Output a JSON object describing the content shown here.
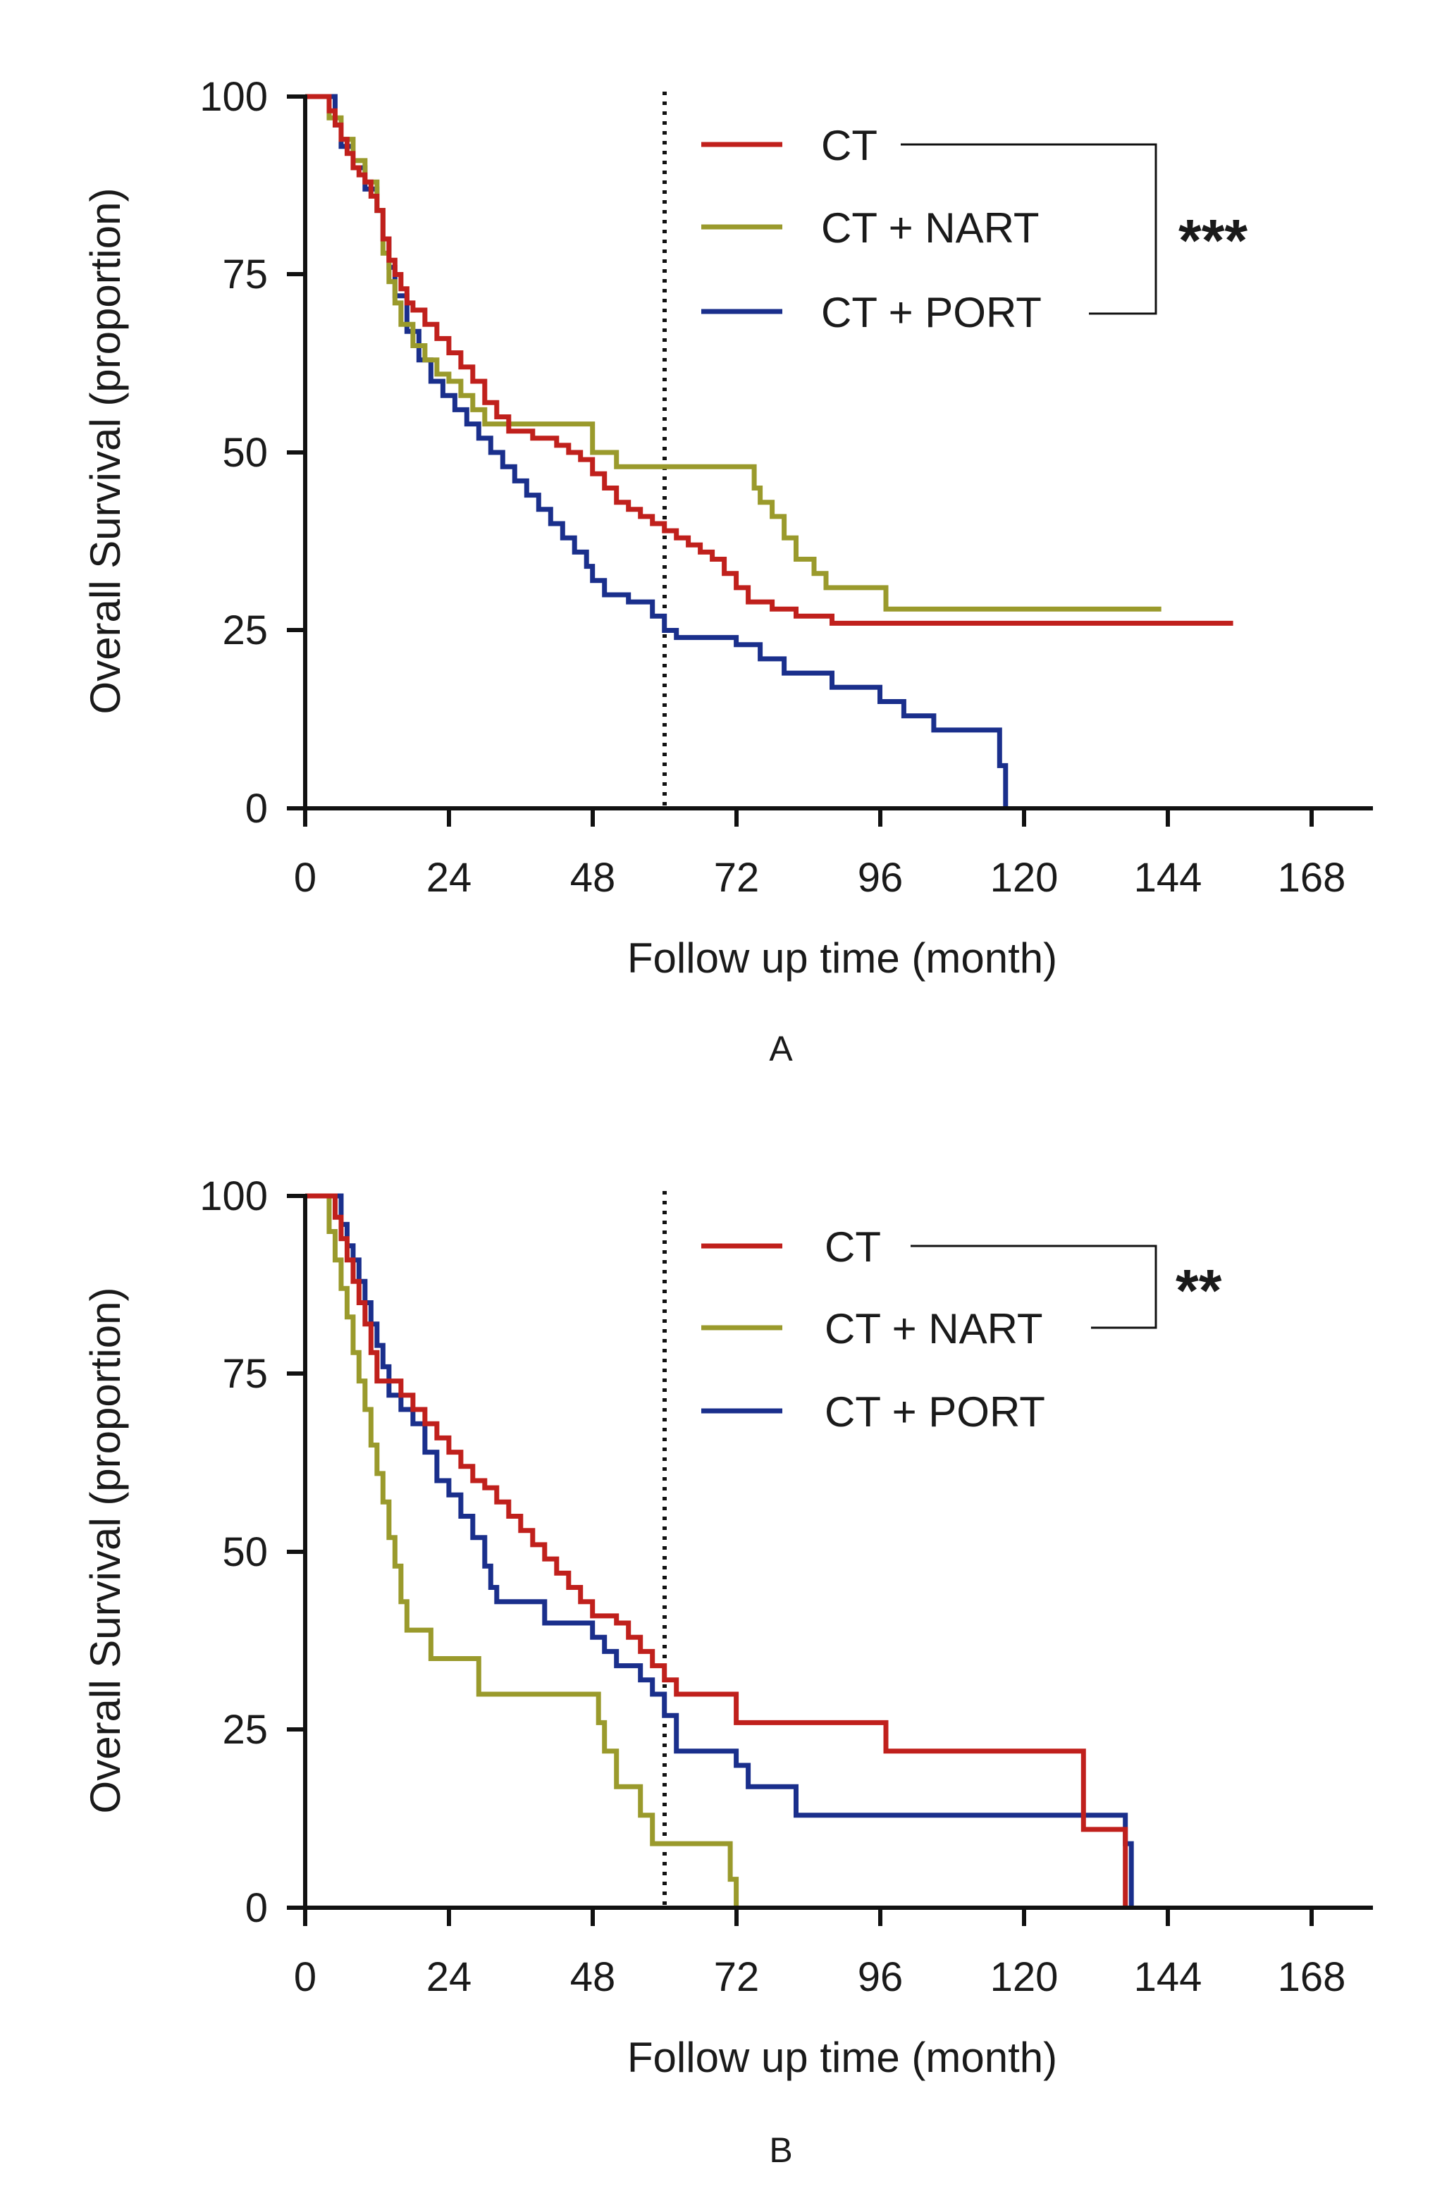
{
  "colors": {
    "CT": "#c0201c",
    "CT + NART": "#9a9a2c",
    "CT + PORT": "#1a2f8c"
  },
  "chart_data": [
    {
      "type": "line",
      "panel_label": "A",
      "ylabel": "Overall Survival (proportion)",
      "xlabel": "Follow up time (month)",
      "xlim": [
        0,
        178
      ],
      "ylim": [
        0,
        100
      ],
      "xticks": [
        0,
        24,
        48,
        72,
        96,
        120,
        144,
        168
      ],
      "yticks": [
        0,
        25,
        50,
        75,
        100
      ],
      "reference_line_x": 60,
      "legend": [
        "CT",
        "CT + NART",
        "CT + PORT"
      ],
      "significance": {
        "label": "***",
        "groups": [
          "CT",
          "CT + PORT"
        ]
      },
      "series": [
        {
          "name": "CT",
          "points": [
            [
              0,
              100
            ],
            [
              3,
              100
            ],
            [
              4,
              98
            ],
            [
              5,
              96
            ],
            [
              6,
              94
            ],
            [
              7,
              92
            ],
            [
              8,
              90
            ],
            [
              9,
              89
            ],
            [
              10,
              88
            ],
            [
              11,
              86
            ],
            [
              12,
              84
            ],
            [
              13,
              80
            ],
            [
              14,
              77
            ],
            [
              15,
              75
            ],
            [
              16,
              73
            ],
            [
              17,
              71
            ],
            [
              18,
              70
            ],
            [
              20,
              68
            ],
            [
              22,
              66
            ],
            [
              24,
              64
            ],
            [
              26,
              62
            ],
            [
              28,
              60
            ],
            [
              30,
              57
            ],
            [
              32,
              55
            ],
            [
              34,
              53
            ],
            [
              36,
              53
            ],
            [
              38,
              52
            ],
            [
              40,
              52
            ],
            [
              42,
              51
            ],
            [
              44,
              50
            ],
            [
              46,
              49
            ],
            [
              48,
              47
            ],
            [
              50,
              45
            ],
            [
              52,
              43
            ],
            [
              54,
              42
            ],
            [
              56,
              41
            ],
            [
              58,
              40
            ],
            [
              60,
              39
            ],
            [
              62,
              38
            ],
            [
              64,
              37
            ],
            [
              66,
              36
            ],
            [
              68,
              35
            ],
            [
              70,
              33
            ],
            [
              72,
              31
            ],
            [
              74,
              29
            ],
            [
              78,
              28
            ],
            [
              82,
              27
            ],
            [
              88,
              26
            ],
            [
              100,
              26
            ],
            [
              155,
              26
            ]
          ]
        },
        {
          "name": "CT + NART",
          "points": [
            [
              0,
              100
            ],
            [
              3,
              100
            ],
            [
              4,
              97
            ],
            [
              6,
              94
            ],
            [
              8,
              91
            ],
            [
              10,
              88
            ],
            [
              12,
              84
            ],
            [
              13,
              78
            ],
            [
              14,
              74
            ],
            [
              15,
              71
            ],
            [
              16,
              68
            ],
            [
              18,
              65
            ],
            [
              20,
              63
            ],
            [
              22,
              61
            ],
            [
              24,
              60
            ],
            [
              26,
              58
            ],
            [
              28,
              56
            ],
            [
              30,
              54
            ],
            [
              48,
              54
            ],
            [
              48,
              50
            ],
            [
              52,
              50
            ],
            [
              52,
              48
            ],
            [
              75,
              48
            ],
            [
              75,
              45
            ],
            [
              76,
              43
            ],
            [
              78,
              41
            ],
            [
              80,
              38
            ],
            [
              82,
              35
            ],
            [
              85,
              33
            ],
            [
              87,
              31
            ],
            [
              97,
              31
            ],
            [
              97,
              28
            ],
            [
              143,
              28
            ]
          ]
        },
        {
          "name": "CT + PORT",
          "points": [
            [
              0,
              100
            ],
            [
              4,
              100
            ],
            [
              5,
              96
            ],
            [
              6,
              93
            ],
            [
              8,
              90
            ],
            [
              10,
              87
            ],
            [
              12,
              84
            ],
            [
              13,
              80
            ],
            [
              14,
              76
            ],
            [
              15,
              72
            ],
            [
              17,
              67
            ],
            [
              19,
              63
            ],
            [
              21,
              60
            ],
            [
              23,
              58
            ],
            [
              25,
              56
            ],
            [
              27,
              54
            ],
            [
              29,
              52
            ],
            [
              31,
              50
            ],
            [
              33,
              48
            ],
            [
              35,
              46
            ],
            [
              37,
              44
            ],
            [
              39,
              42
            ],
            [
              41,
              40
            ],
            [
              43,
              38
            ],
            [
              45,
              36
            ],
            [
              47,
              34
            ],
            [
              48,
              32
            ],
            [
              50,
              30
            ],
            [
              54,
              29
            ],
            [
              58,
              27
            ],
            [
              60,
              25
            ],
            [
              62,
              24
            ],
            [
              72,
              24
            ],
            [
              72,
              23
            ],
            [
              76,
              21
            ],
            [
              80,
              19
            ],
            [
              88,
              17
            ],
            [
              96,
              15
            ],
            [
              100,
              13
            ],
            [
              105,
              11
            ],
            [
              110,
              11
            ],
            [
              116,
              11
            ],
            [
              116,
              6
            ],
            [
              117,
              0
            ]
          ]
        }
      ]
    },
    {
      "type": "line",
      "panel_label": "B",
      "ylabel": "Overall Survival (proportion)",
      "xlabel": "Follow up time (month)",
      "xlim": [
        0,
        178
      ],
      "ylim": [
        0,
        100
      ],
      "xticks": [
        0,
        24,
        48,
        72,
        96,
        120,
        144,
        168
      ],
      "yticks": [
        0,
        25,
        50,
        75,
        100
      ],
      "reference_line_x": 60,
      "legend": [
        "CT",
        "CT + NART",
        "CT + PORT"
      ],
      "significance": {
        "label": "**",
        "groups": [
          "CT",
          "CT + NART"
        ]
      },
      "series": [
        {
          "name": "CT",
          "points": [
            [
              0,
              100
            ],
            [
              4,
              100
            ],
            [
              5,
              97
            ],
            [
              6,
              94
            ],
            [
              7,
              91
            ],
            [
              8,
              88
            ],
            [
              9,
              85
            ],
            [
              10,
              82
            ],
            [
              11,
              78
            ],
            [
              12,
              74
            ],
            [
              15,
              74
            ],
            [
              16,
              72
            ],
            [
              18,
              70
            ],
            [
              20,
              68
            ],
            [
              22,
              66
            ],
            [
              24,
              64
            ],
            [
              26,
              62
            ],
            [
              28,
              60
            ],
            [
              30,
              59
            ],
            [
              32,
              57
            ],
            [
              34,
              55
            ],
            [
              36,
              53
            ],
            [
              38,
              51
            ],
            [
              40,
              49
            ],
            [
              42,
              47
            ],
            [
              44,
              45
            ],
            [
              46,
              43
            ],
            [
              48,
              41
            ],
            [
              52,
              40
            ],
            [
              54,
              38
            ],
            [
              56,
              36
            ],
            [
              58,
              34
            ],
            [
              60,
              32
            ],
            [
              62,
              30
            ],
            [
              72,
              30
            ],
            [
              72,
              26
            ],
            [
              97,
              26
            ],
            [
              97,
              22
            ],
            [
              130,
              22
            ],
            [
              130,
              11
            ],
            [
              137,
              11
            ],
            [
              137,
              0
            ]
          ]
        },
        {
          "name": "CT + NART",
          "points": [
            [
              0,
              100
            ],
            [
              3,
              100
            ],
            [
              4,
              95
            ],
            [
              5,
              91
            ],
            [
              6,
              87
            ],
            [
              7,
              83
            ],
            [
              8,
              78
            ],
            [
              9,
              74
            ],
            [
              10,
              70
            ],
            [
              11,
              65
            ],
            [
              12,
              61
            ],
            [
              13,
              57
            ],
            [
              14,
              52
            ],
            [
              15,
              48
            ],
            [
              16,
              43
            ],
            [
              17,
              39
            ],
            [
              20,
              39
            ],
            [
              21,
              35
            ],
            [
              29,
              35
            ],
            [
              29,
              30
            ],
            [
              48,
              30
            ],
            [
              49,
              26
            ],
            [
              50,
              22
            ],
            [
              52,
              17
            ],
            [
              56,
              13
            ],
            [
              58,
              9
            ],
            [
              70,
              9
            ],
            [
              71,
              4
            ],
            [
              72,
              0
            ]
          ]
        },
        {
          "name": "CT + PORT",
          "points": [
            [
              0,
              100
            ],
            [
              5,
              100
            ],
            [
              6,
              96
            ],
            [
              7,
              93
            ],
            [
              8,
              91
            ],
            [
              9,
              88
            ],
            [
              10,
              85
            ],
            [
              11,
              82
            ],
            [
              12,
              79
            ],
            [
              13,
              76
            ],
            [
              14,
              72
            ],
            [
              16,
              70
            ],
            [
              18,
              68
            ],
            [
              20,
              64
            ],
            [
              22,
              60
            ],
            [
              24,
              58
            ],
            [
              26,
              55
            ],
            [
              28,
              52
            ],
            [
              30,
              48
            ],
            [
              31,
              45
            ],
            [
              32,
              43
            ],
            [
              40,
              43
            ],
            [
              40,
              40
            ],
            [
              48,
              38
            ],
            [
              50,
              36
            ],
            [
              52,
              34
            ],
            [
              56,
              32
            ],
            [
              58,
              30
            ],
            [
              60,
              27
            ],
            [
              62,
              22
            ],
            [
              72,
              22
            ],
            [
              72,
              20
            ],
            [
              74,
              17
            ],
            [
              82,
              17
            ],
            [
              82,
              13
            ],
            [
              137,
              13
            ],
            [
              137,
              9
            ],
            [
              138,
              4
            ],
            [
              138,
              0
            ]
          ]
        }
      ]
    }
  ]
}
